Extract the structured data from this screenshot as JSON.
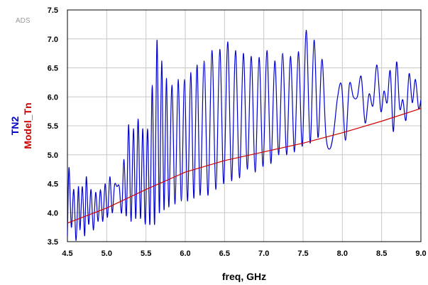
{
  "watermark": "ADS",
  "chart_data": {
    "type": "line",
    "title": "",
    "xlabel": "freq, GHz",
    "xlim": [
      4.5,
      9.0
    ],
    "ylim": [
      3.5,
      7.5
    ],
    "grid": true,
    "x_ticks": [
      "4.5",
      "5.0",
      "5.5",
      "6.0",
      "6.5",
      "7.0",
      "7.5",
      "8.0",
      "8.5",
      "9.0"
    ],
    "y_ticks": [
      "3.5",
      "4.0",
      "4.5",
      "5.0",
      "5.5",
      "6.0",
      "6.5",
      "7.0",
      "7.5"
    ],
    "series": [
      {
        "name": "TN2",
        "color": "#0000cc",
        "x": [
          4.5,
          4.52,
          4.55,
          4.58,
          4.61,
          4.64,
          4.66,
          4.69,
          4.72,
          4.74,
          4.77,
          4.8,
          4.83,
          4.86,
          4.89,
          4.92,
          4.95,
          4.98,
          5.01,
          5.04,
          5.07,
          5.1,
          5.13,
          5.16,
          5.19,
          5.22,
          5.25,
          5.28,
          5.31,
          5.34,
          5.37,
          5.4,
          5.43,
          5.46,
          5.49,
          5.52,
          5.55,
          5.58,
          5.61,
          5.64,
          5.67,
          5.7,
          5.73,
          5.76,
          5.79,
          5.83,
          5.87,
          5.91,
          5.95,
          5.99,
          6.03,
          6.07,
          6.11,
          6.15,
          6.19,
          6.24,
          6.29,
          6.34,
          6.39,
          6.44,
          6.49,
          6.54,
          6.59,
          6.64,
          6.69,
          6.74,
          6.79,
          6.84,
          6.89,
          6.94,
          6.99,
          7.04,
          7.09,
          7.14,
          7.19,
          7.24,
          7.29,
          7.34,
          7.39,
          7.44,
          7.49,
          7.54,
          7.59,
          7.64,
          7.69,
          7.74,
          7.79,
          7.84,
          7.89,
          7.94,
          7.99,
          8.04,
          8.09,
          8.14,
          8.19,
          8.24,
          8.29,
          8.34,
          8.39,
          8.44,
          8.49,
          8.53,
          8.57,
          8.61,
          8.65,
          8.69,
          8.73,
          8.77,
          8.81,
          8.85,
          8.89,
          8.93,
          8.97,
          9.0
        ],
        "y": [
          3.6,
          4.78,
          3.75,
          4.4,
          3.52,
          4.45,
          3.7,
          4.45,
          3.6,
          4.62,
          3.8,
          4.4,
          3.7,
          4.35,
          3.85,
          4.4,
          3.85,
          4.5,
          3.92,
          4.62,
          4.0,
          4.48,
          4.45,
          4.45,
          4.0,
          4.92,
          3.95,
          5.52,
          3.85,
          5.45,
          3.9,
          5.62,
          3.9,
          5.45,
          3.8,
          5.45,
          3.8,
          6.2,
          3.8,
          6.98,
          4.0,
          6.62,
          4.05,
          6.32,
          4.1,
          6.2,
          4.15,
          6.3,
          4.2,
          6.3,
          4.2,
          6.42,
          4.25,
          6.55,
          4.3,
          6.62,
          4.3,
          6.8,
          4.4,
          6.82,
          4.5,
          6.95,
          4.55,
          6.8,
          4.6,
          6.75,
          4.75,
          6.7,
          4.7,
          6.68,
          4.8,
          6.8,
          4.85,
          6.62,
          5.0,
          6.75,
          5.0,
          6.7,
          5.05,
          6.78,
          5.15,
          7.15,
          5.2,
          6.98,
          5.3,
          6.65,
          5.35,
          5.1,
          5.4,
          6.0,
          6.2,
          5.25,
          6.22,
          6.0,
          6.0,
          6.35,
          5.55,
          6.05,
          5.85,
          6.55,
          5.75,
          6.1,
          5.9,
          6.45,
          5.4,
          6.6,
          5.8,
          5.95,
          5.6,
          6.4,
          5.9,
          6.3,
          5.8,
          5.95
        ],
        "data_points_are_envelope_samples": false
      },
      {
        "name": "Model_Tn",
        "color": "#cc0000",
        "x": [
          4.5,
          5.0,
          5.5,
          6.0,
          6.5,
          7.0,
          7.5,
          8.0,
          8.5,
          9.0
        ],
        "y": [
          3.82,
          4.08,
          4.4,
          4.7,
          4.9,
          5.05,
          5.2,
          5.38,
          5.58,
          5.8
        ]
      }
    ]
  }
}
